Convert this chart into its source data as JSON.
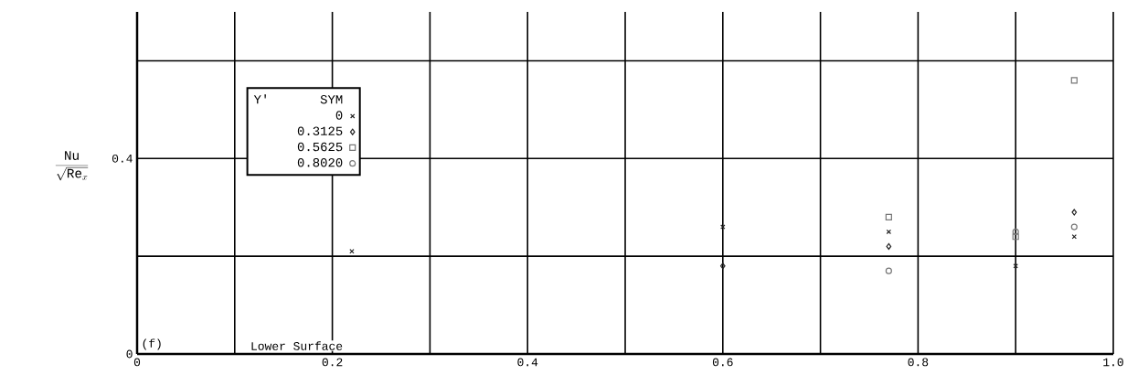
{
  "chart_data": {
    "type": "scatter",
    "ylabel": "\\frac{\\mathrm{Nu}}{\\sqrt{\\mathrm{Re}_{x}}}",
    "legend_title": "Y'",
    "annotations": [
      "(f)",
      "Lower Surface",
      "SYM"
    ],
    "xlim": [
      0,
      1
    ],
    "ylim": [
      0,
      0.7
    ],
    "xticks": [
      0,
      {
        "value": 0.1,
        "label": null
      },
      0.2,
      {
        "value": 0.3,
        "label": null
      },
      0.4,
      {
        "value": 0.5,
        "label": null
      },
      0.6,
      {
        "value": 0.7,
        "label": null
      },
      0.8,
      {
        "value": 0.9,
        "label": null
      },
      {
        "value": 1,
        "label": "1.0"
      }
    ],
    "yticks": [
      0,
      {
        "value": 0.2,
        "label": null
      },
      0.4,
      {
        "value": 0.6,
        "label": null
      }
    ],
    "grid": true,
    "legend": "top left",
    "series": [
      {
        "name": "0",
        "marker": "cross",
        "color": "#222222",
        "x": [
          0.22,
          0.6,
          0.77,
          0.9,
          0.96
        ],
        "values": [
          0.21,
          0.26,
          0.25,
          0.18,
          0.24
        ]
      },
      {
        "name": "0.3125",
        "marker": "diamond",
        "color": "#222222",
        "x": [
          0.6,
          0.77,
          0.96
        ],
        "values": [
          0.18,
          0.22,
          0.29
        ]
      },
      {
        "name": "0.5625",
        "marker": "square",
        "color": "#777777",
        "x": [
          0.77,
          0.9,
          0.96
        ],
        "values": [
          0.28,
          0.24,
          0.56
        ]
      },
      {
        "name": "0.8020",
        "marker": "circle",
        "color": "#777777",
        "x": [
          0.77,
          0.9,
          0.96
        ],
        "values": [
          0.17,
          0.25,
          0.26
        ]
      }
    ]
  }
}
